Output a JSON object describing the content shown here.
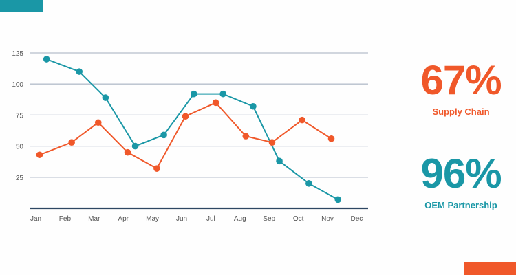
{
  "colors": {
    "teal": "#1a97a6",
    "orange": "#f0582a",
    "grid": "#b6bfcc",
    "axis": "#2e4763"
  },
  "stats": [
    {
      "value": "67%",
      "label": "Supply Chain",
      "color": "#f0582a"
    },
    {
      "value": "96%",
      "label": "OEM Partnership",
      "color": "#1a97a6"
    }
  ],
  "chart_data": {
    "type": "line",
    "categories": [
      "Jan",
      "Feb",
      "Mar",
      "Apr",
      "May",
      "Jun",
      "Jul",
      "Aug",
      "Sep",
      "Oct",
      "Nov",
      "Dec"
    ],
    "yticks": [
      25,
      50,
      75,
      100,
      125
    ],
    "ylim": [
      0,
      125
    ],
    "grid": true,
    "series": [
      {
        "color": "#1a97a6",
        "points": [
          [
            0.37,
            120
          ],
          [
            1.49,
            110
          ],
          [
            2.39,
            89
          ],
          [
            3.41,
            50
          ],
          [
            4.39,
            59
          ],
          [
            5.42,
            92
          ],
          [
            6.42,
            92
          ],
          [
            7.45,
            82
          ],
          [
            8.35,
            38
          ],
          [
            9.36,
            20
          ],
          [
            10.36,
            7
          ]
        ]
      },
      {
        "color": "#f0582a",
        "points": [
          [
            0.13,
            43
          ],
          [
            1.23,
            53
          ],
          [
            2.14,
            69
          ],
          [
            3.15,
            45
          ],
          [
            4.15,
            32
          ],
          [
            5.13,
            74
          ],
          [
            6.17,
            85
          ],
          [
            7.2,
            58
          ],
          [
            8.1,
            53
          ],
          [
            9.13,
            71
          ],
          [
            10.13,
            56
          ]
        ]
      }
    ]
  }
}
